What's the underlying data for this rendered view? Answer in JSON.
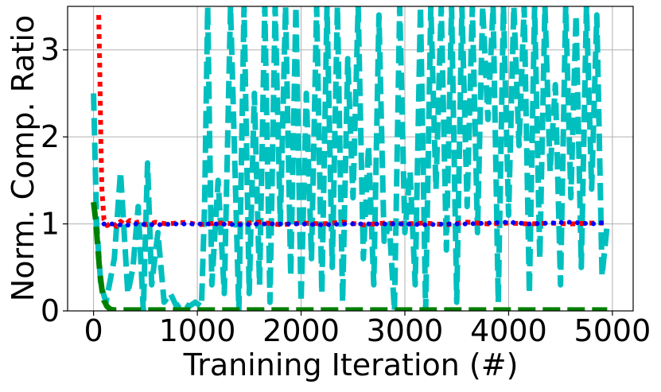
{
  "chart_data": {
    "type": "line",
    "title": "",
    "xlabel": "Tranining Iteration (#)",
    "ylabel": "Norm. Comp. Ratio",
    "xlim": [
      -250,
      5200
    ],
    "ylim": [
      0,
      3.5
    ],
    "xticks": [
      0,
      1000,
      2000,
      3000,
      4000,
      5000
    ],
    "yticks": [
      0,
      1,
      2,
      3
    ],
    "grid": true,
    "legend": "none",
    "colors": {
      "cyan": "#00bfbf",
      "green": "#008000",
      "red": "#ff0000",
      "blue": "#0000ff"
    },
    "series": [
      {
        "line_style": "dashed",
        "color": "cyan",
        "x": [
          0,
          30,
          70,
          120,
          200,
          260,
          330,
          380,
          430,
          480,
          520,
          560,
          620,
          680,
          740,
          800,
          860,
          920,
          980,
          1040,
          1070,
          1100,
          1140,
          1200,
          1260,
          1320,
          1400,
          1450,
          1500,
          1550,
          1600,
          1650,
          1700,
          1750,
          1800,
          1850,
          1900,
          1950,
          2000,
          2050,
          2100,
          2150,
          2200,
          2250,
          2300,
          2350,
          2400,
          2450,
          2500,
          2550,
          2600,
          2650,
          2700,
          2750,
          2800,
          2850,
          2900,
          2950,
          3000,
          3050,
          3100,
          3150,
          3200,
          3250,
          3300,
          3350,
          3400,
          3450,
          3500,
          3550,
          3600,
          3650,
          3700,
          3750,
          3800,
          3850,
          3900,
          3950,
          4000,
          4050,
          4100,
          4150,
          4200,
          4250,
          4300,
          4350,
          4400,
          4450,
          4500,
          4550,
          4600,
          4650,
          4700,
          4750,
          4800,
          4850,
          4900,
          4950
        ],
        "y": [
          2.5,
          1.0,
          0.3,
          0.1,
          0.6,
          1.6,
          0.2,
          0.5,
          1.2,
          0.0,
          1.7,
          0.3,
          0.9,
          0.1,
          0.2,
          0.05,
          0.1,
          0.05,
          0.1,
          0.05,
          1.2,
          3.5,
          0.3,
          1.5,
          0.2,
          3.5,
          0.0,
          3.5,
          0.2,
          2.5,
          0.3,
          3.5,
          0.1,
          3.5,
          1.0,
          3.5,
          0.4,
          3.5,
          0.1,
          2.5,
          0.6,
          3.5,
          0.2,
          3.5,
          0.5,
          3.5,
          0.1,
          2.9,
          1.3,
          3.5,
          0.6,
          1.9,
          0.3,
          3.4,
          0.8,
          1.0,
          0.0,
          3.5,
          0.9,
          1.6,
          0.3,
          3.5,
          0.0,
          3.5,
          1.4,
          3.5,
          0.7,
          3.5,
          0.1,
          3.5,
          1.2,
          3.5,
          0.9,
          3.5,
          2.2,
          3.5,
          0.1,
          3.5,
          1.1,
          3.5,
          1.9,
          3.5,
          0.2,
          3.5,
          0.6,
          3.5,
          1.6,
          2.6,
          0.3,
          3.5,
          1.3,
          3.4,
          0.5,
          3.5,
          1.4,
          3.4,
          0.4,
          1.0
        ]
      },
      {
        "line_style": "dashed",
        "color": "green",
        "x": [
          0,
          20,
          40,
          60,
          80,
          100,
          130,
          160,
          200,
          400,
          700,
          1000,
          1500,
          2000,
          2500,
          3000,
          3500,
          4000,
          4500,
          4950
        ],
        "y": [
          1.25,
          1.05,
          0.75,
          0.45,
          0.25,
          0.12,
          0.05,
          0.02,
          0.01,
          0.01,
          0.01,
          0.01,
          0.01,
          0.01,
          0.01,
          0.01,
          0.01,
          0.01,
          0.01,
          0.01
        ]
      },
      {
        "line_style": "dotted",
        "color": "red",
        "x": [
          50,
          60,
          70,
          80,
          100,
          130,
          180,
          220,
          260,
          300,
          350,
          400,
          450,
          500,
          600,
          700,
          800,
          900,
          1000,
          1200,
          1400,
          1600,
          1800,
          2000,
          2200,
          2400,
          2600,
          2800,
          3000,
          3200,
          3400,
          3600,
          3800,
          4000,
          4200,
          4400,
          4600,
          4800,
          4950
        ],
        "y": [
          3.4,
          2.8,
          2.0,
          1.4,
          1.05,
          0.98,
          1.02,
          0.97,
          1.03,
          0.99,
          1.04,
          1.01,
          1.03,
          0.99,
          1.02,
          1.0,
          1.01,
          1.02,
          0.99,
          1.01,
          1.0,
          1.02,
          0.99,
          1.01,
          1.0,
          1.02,
          0.99,
          1.01,
          1.0,
          1.01,
          0.99,
          1.02,
          1.0,
          1.01,
          1.0,
          1.01,
          1.0,
          1.01,
          1.01
        ]
      },
      {
        "line_style": "dotted",
        "color": "blue",
        "x": [
          100,
          200,
          300,
          400,
          600,
          800,
          1000,
          1200,
          1400,
          1600,
          1800,
          2000,
          2200,
          2400,
          2600,
          2800,
          3000,
          3200,
          3400,
          3600,
          3800,
          4000,
          4200,
          4400,
          4600,
          4800,
          4950
        ],
        "y": [
          1.0,
          1.0,
          0.98,
          1.0,
          0.99,
          1.0,
          1.0,
          1.0,
          0.99,
          1.0,
          1.0,
          1.0,
          0.99,
          1.0,
          1.0,
          1.0,
          1.0,
          0.99,
          1.0,
          1.0,
          1.01,
          1.02,
          1.0,
          1.01,
          1.02,
          1.0,
          1.02
        ]
      }
    ]
  }
}
